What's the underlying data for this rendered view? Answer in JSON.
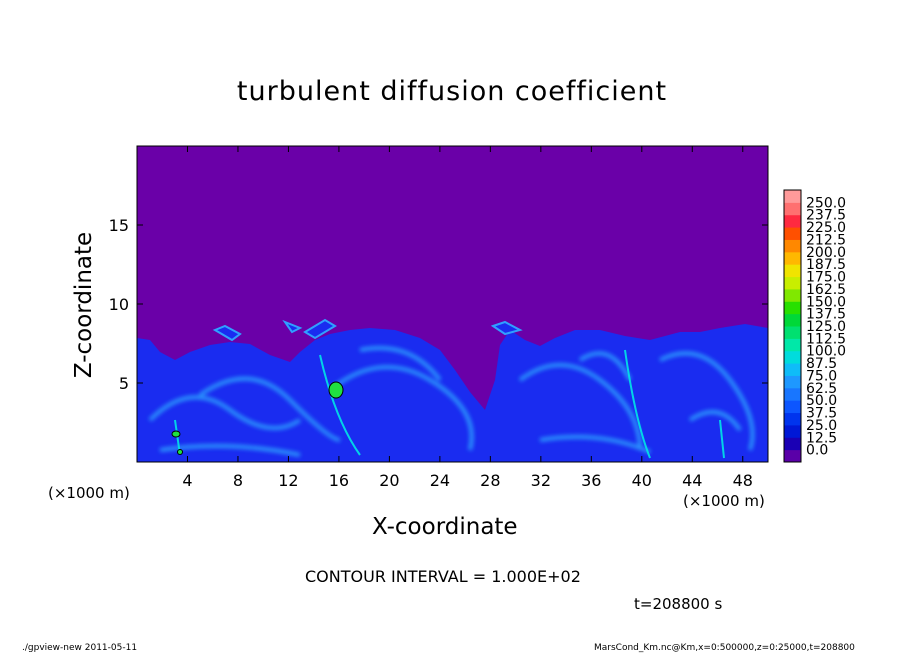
{
  "chart_data": {
    "type": "heatmap",
    "title": "turbulent diffusion coefficient",
    "xlabel": "X-coordinate",
    "ylabel": "Z-coordinate",
    "x_unit_label": "(×1000 m)",
    "xlim": [
      0,
      50
    ],
    "ylim": [
      0,
      20
    ],
    "x_ticks": [
      4,
      8,
      12,
      16,
      20,
      24,
      28,
      32,
      36,
      40,
      44,
      48
    ],
    "x_tick_labels": [
      "4",
      "8",
      "12",
      "16",
      "20",
      "24",
      "28",
      "32",
      "36",
      "40",
      "44",
      "48"
    ],
    "y_ticks": [
      5,
      10,
      15
    ],
    "y_tick_labels": [
      "5",
      "10",
      "15"
    ],
    "colorbar": {
      "levels": [
        "0.0",
        "12.5",
        "25.0",
        "37.5",
        "50.0",
        "62.5",
        "75.0",
        "87.5",
        "100.0",
        "112.5",
        "125.0",
        "137.5",
        "150.0",
        "162.5",
        "175.0",
        "187.5",
        "200.0",
        "212.5",
        "225.0",
        "237.5",
        "250.0"
      ],
      "colors": [
        "#5a00a8",
        "#1a00b4",
        "#0018d6",
        "#0034ee",
        "#0c56ff",
        "#1876ff",
        "#1e98ff",
        "#0fbcf8",
        "#00dcdc",
        "#00e8a8",
        "#00e070",
        "#00d838",
        "#28e000",
        "#80e800",
        "#c8ee00",
        "#f0e400",
        "#ffb800",
        "#ff8800",
        "#ff5000",
        "#ff2a40",
        "#ff7070",
        "#ff9a9a"
      ]
    },
    "background_value_color": "#6a00a8",
    "contour_interval_label": "CONTOUR INTERVAL = 1.000E+02",
    "time_label": "t=208800 s"
  },
  "footer": {
    "left": "./gpview-new  2011-05-11",
    "right": "MarsCond_Km.nc@Km,x=0:500000,z=0:25000,t=208800"
  }
}
